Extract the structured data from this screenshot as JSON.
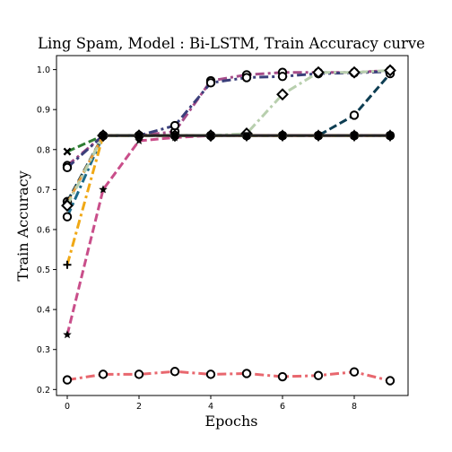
{
  "chart_data": {
    "type": "line",
    "title": "Ling Spam, Model : Bi-LSTM, Train Accuracy curve",
    "xlabel": "Epochs",
    "ylabel": "Train Accuracy",
    "xlim": [
      -0.3,
      9.5
    ],
    "ylim": [
      0.185,
      1.035
    ],
    "xticks": [
      0,
      2,
      4,
      6,
      8
    ],
    "yticks": [
      0.2,
      0.3,
      0.4,
      0.5,
      0.6,
      0.7,
      0.8,
      0.9,
      1.0
    ],
    "grid": false,
    "x": [
      0,
      1,
      2,
      3,
      4,
      5,
      6,
      7,
      8,
      9
    ],
    "series": [
      {
        "color": "#e8676e",
        "style": "dashdot",
        "marker": "o",
        "values": [
          0.224,
          0.238,
          0.238,
          0.245,
          0.238,
          0.24,
          0.232,
          0.235,
          0.244,
          0.222
        ]
      },
      {
        "color": "#a64d8a",
        "style": "dashdot",
        "marker": "o",
        "values": [
          0.76,
          0.835,
          0.835,
          0.845,
          0.972,
          0.987,
          0.993,
          0.993,
          0.993,
          0.998
        ]
      },
      {
        "color": "#3a3f7a",
        "style": "dashdot",
        "marker": "o",
        "values": [
          0.755,
          0.835,
          0.835,
          0.86,
          0.967,
          0.98,
          0.983,
          0.99,
          0.992,
          0.995
        ]
      },
      {
        "color": "#1d6a8a",
        "style": "dashdot",
        "marker": "o",
        "values": [
          0.632,
          0.835,
          0.835,
          0.835,
          0.835,
          0.835,
          0.835,
          0.835,
          0.835,
          0.835
        ]
      },
      {
        "color": "#0d3d52",
        "style": "dashed",
        "marker": "o",
        "values": [
          0.67,
          0.835,
          0.835,
          0.835,
          0.835,
          0.835,
          0.835,
          0.835,
          0.886,
          0.99
        ]
      },
      {
        "color": "#2e7d32",
        "style": "dashed",
        "marker": "x",
        "values": [
          0.795,
          0.835,
          0.835,
          0.835,
          0.835,
          0.835,
          0.835,
          0.835,
          0.835,
          0.835
        ]
      },
      {
        "color": "#e89a3a",
        "style": "dashed",
        "marker": "d",
        "values": [
          0.665,
          0.835,
          0.835,
          0.835,
          0.835,
          0.835,
          0.835,
          0.835,
          0.835,
          0.835
        ]
      },
      {
        "color": "#f0a815",
        "style": "dashdot",
        "marker": "+",
        "values": [
          0.512,
          0.835,
          0.835,
          0.835,
          0.835,
          0.835,
          0.835,
          0.835,
          0.835,
          0.835
        ]
      },
      {
        "color": "#c94e8a",
        "style": "dashed",
        "marker": "*",
        "values": [
          0.337,
          0.7,
          0.822,
          0.83,
          0.835,
          0.835,
          0.835,
          0.835,
          0.835,
          0.835
        ]
      },
      {
        "color": "#b8cfae",
        "style": "dashdot",
        "marker": "D",
        "values": [
          0.66,
          0.835,
          0.835,
          0.835,
          0.835,
          0.84,
          0.938,
          0.993,
          0.993,
          0.998
        ]
      },
      {
        "color": "#222222",
        "style": "solid",
        "marker": "s",
        "values": [
          null,
          0.835,
          0.835,
          0.835,
          0.835,
          0.835,
          0.835,
          0.835,
          0.835,
          0.835
        ]
      }
    ]
  }
}
